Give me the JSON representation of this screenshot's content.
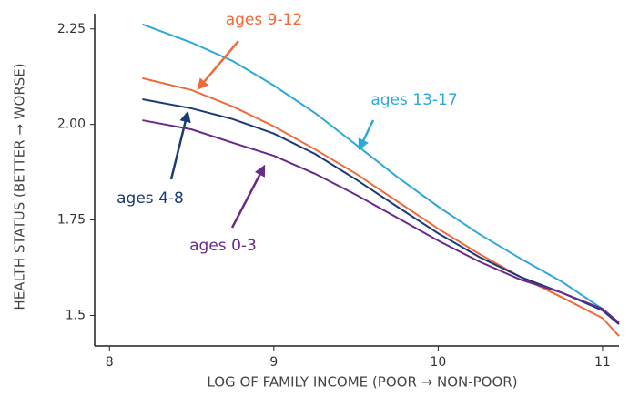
{
  "chart_data": {
    "type": "line",
    "x_label": "LOG OF FAMILY INCOME (POOR → NON-POOR)",
    "y_label": "HEALTH STATUS (BETTER → WORSE)",
    "x": [
      8.2,
      8.5,
      8.75,
      9,
      9.25,
      9.5,
      9.75,
      10,
      10.25,
      10.5,
      10.75,
      11,
      11.1
    ],
    "series": [
      {
        "name": "ages 13-17",
        "color": "#2ea8d8",
        "values": [
          2.262,
          2.214,
          2.166,
          2.102,
          2.03,
          1.947,
          1.863,
          1.785,
          1.713,
          1.649,
          1.589,
          1.517,
          1.481
        ]
      },
      {
        "name": "ages 9-12",
        "color": "#ef6a3a",
        "values": [
          2.121,
          2.09,
          2.047,
          1.995,
          1.935,
          1.871,
          1.799,
          1.727,
          1.661,
          1.601,
          1.548,
          1.493,
          1.446
        ]
      },
      {
        "name": "ages 4-8",
        "color": "#1a3a78",
        "values": [
          2.066,
          2.042,
          2.014,
          1.976,
          1.923,
          1.856,
          1.785,
          1.715,
          1.653,
          1.601,
          1.56,
          1.513,
          1.477
        ]
      },
      {
        "name": "ages 0-3",
        "color": "#6a2a8a",
        "values": [
          2.011,
          1.987,
          1.952,
          1.918,
          1.871,
          1.816,
          1.756,
          1.696,
          1.641,
          1.594,
          1.56,
          1.517,
          1.481
        ]
      }
    ],
    "xlim": [
      7.91,
      11.1
    ],
    "ylim": [
      1.42,
      2.29
    ],
    "xticks": [
      8,
      9,
      10,
      11
    ],
    "yticks": [
      {
        "value": 1.5,
        "label": "1.5"
      },
      1.75,
      {
        "value": 2,
        "label": "2.00"
      },
      2.25
    ]
  }
}
